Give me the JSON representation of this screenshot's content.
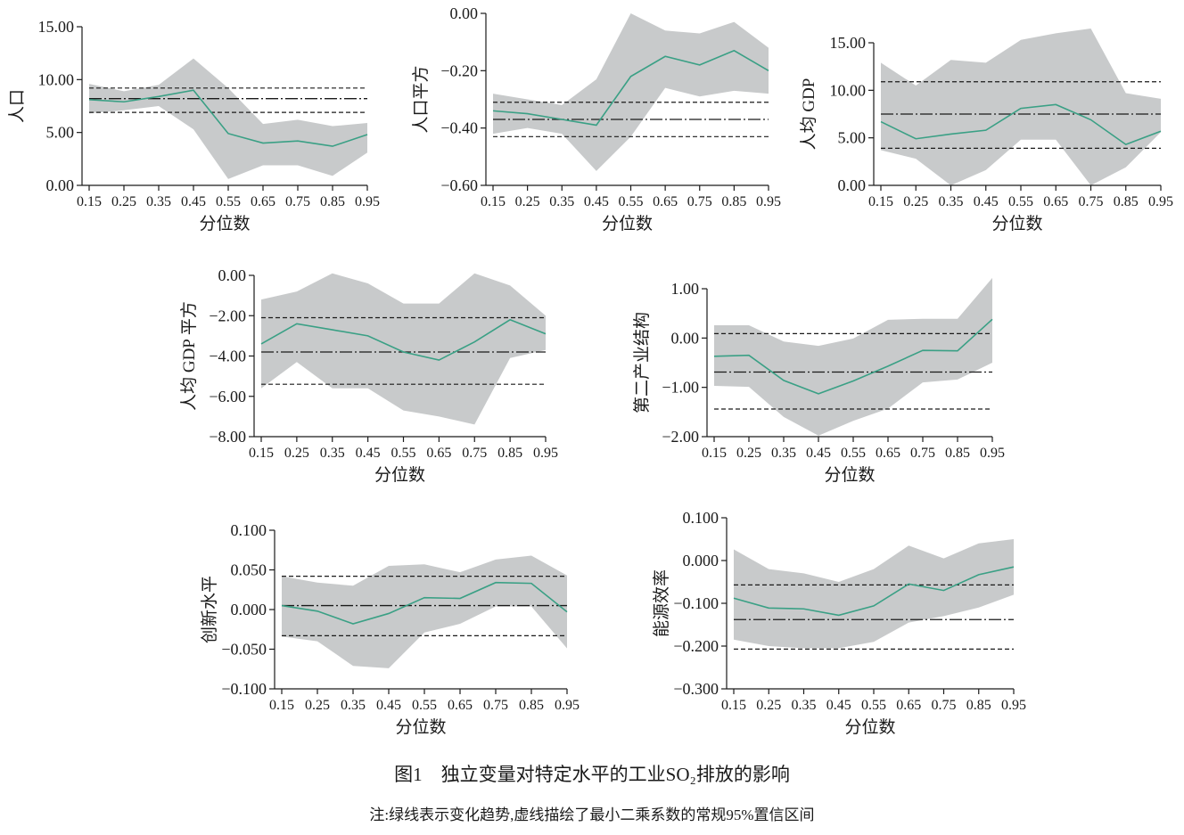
{
  "figure": {
    "title": "图1　独立变量对特定水平的工业SO₂排放的影响",
    "note": "注:绿线表示变化趋势,虚线描绘了最小二乘系数的常规95%置信区间"
  },
  "colors": {
    "trend": "#3aa085",
    "band": "#c8cacb",
    "ols": "#1a1a1a",
    "axis": "#1a1a1a"
  },
  "chart_data": [
    {
      "type": "line",
      "ylabel": "人口",
      "xlabel": "分位数",
      "x": [
        0.15,
        0.25,
        0.35,
        0.45,
        0.55,
        0.65,
        0.75,
        0.85,
        0.95
      ],
      "x_tick_labels": [
        "0.15",
        "0.25",
        "0.35",
        "0.45",
        "0.55",
        "0.65",
        "0.75",
        "0.85",
        "0.95"
      ],
      "y_ticks": [
        0.0,
        5.0,
        10.0,
        15.0
      ],
      "y_tick_labels": [
        "0.00",
        "5.00",
        "10.00",
        "15.00"
      ],
      "ylim": [
        0,
        15
      ],
      "series": [
        {
          "role": "trend",
          "values": [
            8.1,
            7.9,
            8.4,
            9.0,
            4.9,
            4.0,
            4.2,
            3.7,
            4.8
          ]
        },
        {
          "role": "ci_upper",
          "values": [
            9.6,
            8.9,
            9.5,
            12.0,
            9.2,
            5.8,
            6.2,
            5.6,
            5.9
          ]
        },
        {
          "role": "ci_lower",
          "values": [
            6.8,
            7.1,
            7.5,
            5.3,
            0.6,
            1.9,
            1.9,
            0.9,
            3.1
          ]
        }
      ],
      "ols": {
        "coef": 8.2,
        "ci": [
          6.9,
          9.2
        ]
      },
      "grid": false,
      "legend": "none"
    },
    {
      "type": "line",
      "ylabel": "人口平方",
      "xlabel": "分位数",
      "x": [
        0.15,
        0.25,
        0.35,
        0.45,
        0.55,
        0.65,
        0.75,
        0.85,
        0.95
      ],
      "x_tick_labels": [
        "0.15",
        "0.25",
        "0.35",
        "0.45",
        "0.55",
        "0.65",
        "0.75",
        "0.85",
        "0.95"
      ],
      "y_ticks": [
        -0.6,
        -0.4,
        -0.2,
        0.0
      ],
      "y_tick_labels": [
        "−0.60",
        "−0.40",
        "−0.20",
        "0.00"
      ],
      "ylim": [
        -0.6,
        0
      ],
      "series": [
        {
          "role": "trend",
          "values": [
            -0.34,
            -0.35,
            -0.37,
            -0.39,
            -0.22,
            -0.15,
            -0.18,
            -0.13,
            -0.2
          ]
        },
        {
          "role": "ci_upper",
          "values": [
            -0.28,
            -0.3,
            -0.32,
            -0.23,
            0.0,
            -0.06,
            -0.07,
            -0.03,
            -0.12
          ]
        },
        {
          "role": "ci_lower",
          "values": [
            -0.42,
            -0.4,
            -0.42,
            -0.55,
            -0.43,
            -0.26,
            -0.29,
            -0.27,
            -0.28
          ]
        }
      ],
      "ols": {
        "coef": -0.37,
        "ci": [
          -0.43,
          -0.31
        ]
      },
      "grid": false,
      "legend": "none"
    },
    {
      "type": "line",
      "ylabel": "人均 GDP",
      "xlabel": "分位数",
      "x": [
        0.15,
        0.25,
        0.35,
        0.45,
        0.55,
        0.65,
        0.75,
        0.85,
        0.95
      ],
      "x_tick_labels": [
        "0.15",
        "0.25",
        "0.35",
        "0.45",
        "0.55",
        "0.65",
        "0.75",
        "0.85",
        "0.95"
      ],
      "y_ticks": [
        0.0,
        5.0,
        10.0,
        15.0
      ],
      "y_tick_labels": [
        "0.00",
        "5.00",
        "10.00",
        "15.00"
      ],
      "ylim": [
        0,
        15
      ],
      "series": [
        {
          "role": "trend",
          "values": [
            6.7,
            4.9,
            5.4,
            5.8,
            8.1,
            8.5,
            6.9,
            4.3,
            5.7
          ]
        },
        {
          "role": "ci_upper",
          "values": [
            12.9,
            10.5,
            13.2,
            12.9,
            15.3,
            16.0,
            16.7,
            9.7,
            9.1
          ]
        },
        {
          "role": "ci_lower",
          "values": [
            3.7,
            2.8,
            0.0,
            1.6,
            4.8,
            4.8,
            0.0,
            1.9,
            5.6
          ]
        }
      ],
      "ols": {
        "coef": 7.5,
        "ci": [
          3.9,
          10.9
        ]
      },
      "grid": false,
      "legend": "none"
    },
    {
      "type": "line",
      "ylabel": "人均 GDP 平方",
      "xlabel": "分位数",
      "x": [
        0.15,
        0.25,
        0.35,
        0.45,
        0.55,
        0.65,
        0.75,
        0.85,
        0.95
      ],
      "x_tick_labels": [
        "0.15",
        "0.25",
        "0.35",
        "0.45",
        "0.55",
        "0.65",
        "0.75",
        "0.85",
        "0.95"
      ],
      "y_ticks": [
        -8.0,
        -6.0,
        -4.0,
        -2.0,
        0.0
      ],
      "y_tick_labels": [
        "−8.00",
        "−6.00",
        "−4.00",
        "−2.00",
        "0.00"
      ],
      "ylim": [
        -8,
        0
      ],
      "series": [
        {
          "role": "trend",
          "values": [
            -3.4,
            -2.4,
            -2.7,
            -3.0,
            -3.8,
            -4.2,
            -3.3,
            -2.2,
            -2.9
          ]
        },
        {
          "role": "ci_upper",
          "values": [
            -1.2,
            -0.8,
            0.1,
            -0.4,
            -1.4,
            -1.4,
            0.1,
            -0.5,
            -2.0
          ]
        },
        {
          "role": "ci_lower",
          "values": [
            -5.6,
            -4.3,
            -5.6,
            -5.6,
            -6.7,
            -7.0,
            -7.4,
            -4.1,
            -3.7
          ]
        }
      ],
      "ols": {
        "coef": -3.8,
        "ci": [
          -5.4,
          -2.1
        ]
      },
      "grid": false,
      "legend": "none"
    },
    {
      "type": "line",
      "ylabel": "第二产业结构",
      "xlabel": "分位数",
      "x": [
        0.15,
        0.25,
        0.35,
        0.45,
        0.55,
        0.65,
        0.75,
        0.85,
        0.95
      ],
      "x_tick_labels": [
        "0.15",
        "0.25",
        "0.35",
        "0.45",
        "0.55",
        "0.65",
        "0.75",
        "0.85",
        "0.95"
      ],
      "y_ticks": [
        -2.0,
        -1.0,
        0.0,
        1.0
      ],
      "y_tick_labels": [
        "−2.00",
        "−1.00",
        "0.00",
        "1.00"
      ],
      "ylim": [
        -2,
        1
      ],
      "series": [
        {
          "role": "trend",
          "values": [
            -0.37,
            -0.35,
            -0.86,
            -1.13,
            -0.87,
            -0.57,
            -0.25,
            -0.26,
            0.38
          ]
        },
        {
          "role": "ci_upper",
          "values": [
            0.26,
            0.26,
            -0.07,
            -0.16,
            -0.01,
            0.37,
            0.39,
            0.39,
            1.22
          ]
        },
        {
          "role": "ci_lower",
          "values": [
            -0.97,
            -0.99,
            -1.6,
            -1.98,
            -1.68,
            -1.43,
            -0.9,
            -0.84,
            -0.5
          ]
        }
      ],
      "ols": {
        "coef": -0.69,
        "ci": [
          -1.44,
          0.09
        ]
      },
      "grid": false,
      "legend": "none"
    },
    {
      "type": "line",
      "ylabel": "创新水平",
      "xlabel": "分位数",
      "x": [
        0.15,
        0.25,
        0.35,
        0.45,
        0.55,
        0.65,
        0.75,
        0.85,
        0.95
      ],
      "x_tick_labels": [
        "0.15",
        "0.25",
        "0.35",
        "0.45",
        "0.55",
        "0.65",
        "0.75",
        "0.85",
        "0.95"
      ],
      "y_ticks": [
        -0.1,
        -0.05,
        0.0,
        0.05,
        0.1
      ],
      "y_tick_labels": [
        "−0.100",
        "−0.050",
        "0.000",
        "0.050",
        "0.100"
      ],
      "ylim": [
        -0.1,
        0.1
      ],
      "series": [
        {
          "role": "trend",
          "values": [
            0.005,
            -0.002,
            -0.018,
            -0.005,
            0.015,
            0.014,
            0.034,
            0.033,
            -0.003
          ]
        },
        {
          "role": "ci_upper",
          "values": [
            0.042,
            0.034,
            0.03,
            0.055,
            0.057,
            0.047,
            0.063,
            0.068,
            0.043
          ]
        },
        {
          "role": "ci_lower",
          "values": [
            -0.034,
            -0.04,
            -0.071,
            -0.074,
            -0.029,
            -0.018,
            0.004,
            0.004,
            -0.049
          ]
        }
      ],
      "ols": {
        "coef": 0.005,
        "ci": [
          -0.033,
          0.042
        ]
      },
      "grid": false,
      "legend": "none"
    },
    {
      "type": "line",
      "ylabel": "能源效率",
      "xlabel": "分位数",
      "x": [
        0.15,
        0.25,
        0.35,
        0.45,
        0.55,
        0.65,
        0.75,
        0.85,
        0.95
      ],
      "x_tick_labels": [
        "0.15",
        "0.25",
        "0.35",
        "0.45",
        "0.55",
        "0.65",
        "0.75",
        "0.85",
        "0.95"
      ],
      "y_ticks": [
        -0.3,
        -0.2,
        -0.1,
        0.0,
        0.1
      ],
      "y_tick_labels": [
        "−0.300",
        "−0.200",
        "−0.100",
        "0.000",
        "0.100"
      ],
      "ylim": [
        -0.3,
        0.1
      ],
      "series": [
        {
          "role": "trend",
          "values": [
            -0.088,
            -0.111,
            -0.113,
            -0.128,
            -0.106,
            -0.055,
            -0.07,
            -0.033,
            -0.015
          ]
        },
        {
          "role": "ci_upper",
          "values": [
            0.026,
            -0.02,
            -0.03,
            -0.05,
            -0.02,
            0.035,
            0.005,
            0.04,
            0.05
          ]
        },
        {
          "role": "ci_lower",
          "values": [
            -0.185,
            -0.2,
            -0.205,
            -0.205,
            -0.19,
            -0.145,
            -0.13,
            -0.11,
            -0.08
          ]
        }
      ],
      "ols": {
        "coef": -0.138,
        "ci": [
          -0.207,
          -0.057
        ]
      },
      "grid": false,
      "legend": "none"
    }
  ]
}
